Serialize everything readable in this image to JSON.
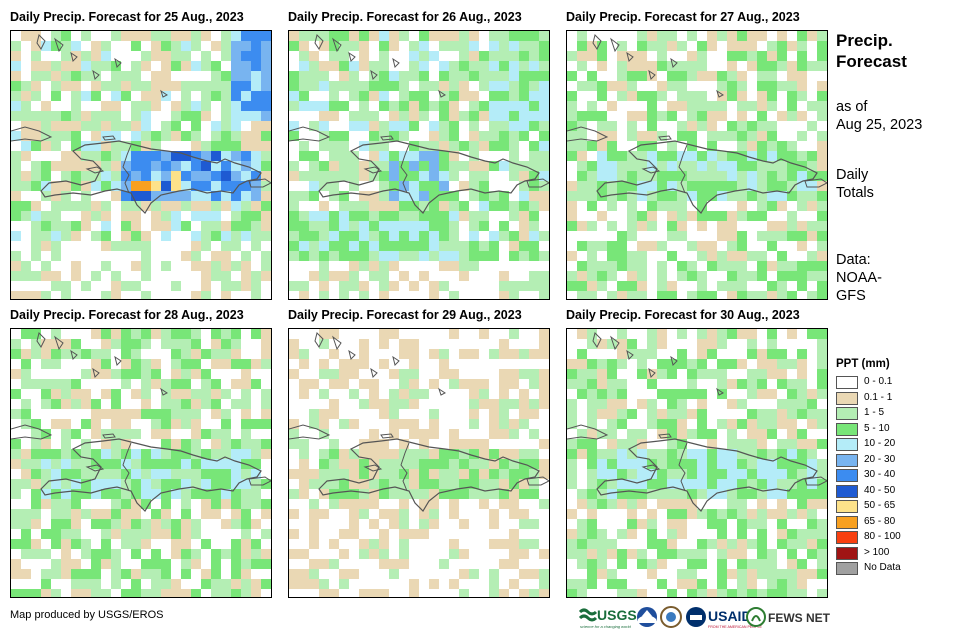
{
  "panels": [
    {
      "title": "Daily Precip. Forecast for 25 Aug., 2023",
      "seed": 11,
      "profile": "wet"
    },
    {
      "title": "Daily Precip. Forecast for 26 Aug., 2023",
      "seed": 23,
      "profile": "moist"
    },
    {
      "title": "Daily Precip. Forecast for 27 Aug., 2023",
      "seed": 37,
      "profile": "light"
    },
    {
      "title": "Daily Precip. Forecast for 28 Aug., 2023",
      "seed": 41,
      "profile": "light"
    },
    {
      "title": "Daily Precip. Forecast for 29 Aug., 2023",
      "seed": 53,
      "profile": "dry"
    },
    {
      "title": "Daily Precip. Forecast for 30 Aug., 2023",
      "seed": 67,
      "profile": "light"
    }
  ],
  "sidebar": {
    "title_line1": "Precip.",
    "title_line2": "Forecast",
    "asof_line1": "as of",
    "asof_line2": "Aug 25, 2023",
    "totals_line1": "Daily",
    "totals_line2": "Totals",
    "data_line1": "Data:",
    "data_line2": "NOAA-",
    "data_line3": "GFS"
  },
  "legend": {
    "title": "PPT (mm)",
    "items": [
      {
        "label": "0 - 0.1",
        "color": "#ffffff"
      },
      {
        "label": "0.1 - 1",
        "color": "#ead8b4"
      },
      {
        "label": "1 - 5",
        "color": "#b4eeb4"
      },
      {
        "label": "5 - 10",
        "color": "#78e678"
      },
      {
        "label": "10 - 20",
        "color": "#b4ecf8"
      },
      {
        "label": "20 - 30",
        "color": "#78b4f0"
      },
      {
        "label": "30 - 40",
        "color": "#3c8cf0"
      },
      {
        "label": "40 - 50",
        "color": "#1e5ad2"
      },
      {
        "label": "50 - 65",
        "color": "#fde28a"
      },
      {
        "label": "65 - 80",
        "color": "#f8a020"
      },
      {
        "label": "80 - 100",
        "color": "#f84010"
      },
      {
        "label": "> 100",
        "color": "#a01414"
      },
      {
        "label": "No Data",
        "color": "#a0a0a0"
      }
    ]
  },
  "credit": "Map produced by USGS/EROS",
  "logos": {
    "usgs": "USGS",
    "usgs_tagline": "science for a changing world",
    "usaid": "USAID",
    "usaid_tagline": "FROM THE AMERICAN PEOPLE",
    "fews": "FEWS NET"
  }
}
